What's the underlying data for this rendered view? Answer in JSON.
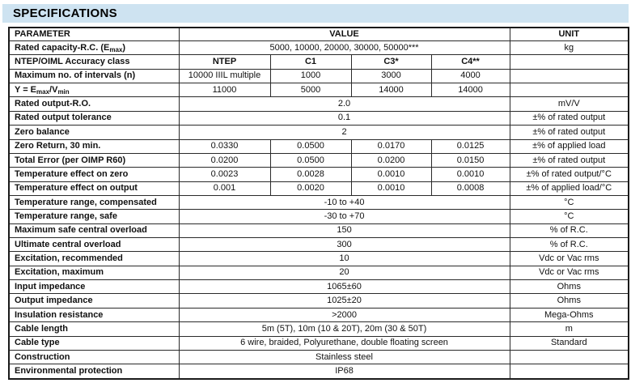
{
  "header": {
    "title": "SPECIFICATIONS",
    "background": "#cee3f1",
    "text_color": "#000000"
  },
  "table": {
    "border_color": "#1a1a1a",
    "columns": {
      "parameter": "PARAMETER",
      "value": "VALUE",
      "unit": "UNIT"
    },
    "rows": [
      {
        "param": "Rated capacity-R.C. (E_{max})",
        "span": "5000, 10000, 20000, 30000, 50000***",
        "unit": "kg"
      },
      {
        "param": "NTEP/OIML Accuracy class",
        "cols": [
          "NTEP",
          "C1",
          "C3*",
          "C4**"
        ],
        "bold": true,
        "unit": ""
      },
      {
        "param": "Maximum no. of intervals (n)",
        "cols": [
          "10000 IIIL multiple",
          "1000",
          "3000",
          "4000"
        ],
        "unit": ""
      },
      {
        "param": "Y = E_{max}/V_{min}",
        "cols": [
          "11000",
          "5000",
          "14000",
          "14000"
        ],
        "unit": ""
      },
      {
        "param": "Rated output-R.O.",
        "span": "2.0",
        "unit": "mV/V"
      },
      {
        "param": "Rated output tolerance",
        "span": "0.1",
        "unit": "±% of rated output"
      },
      {
        "param": "Zero balance",
        "span": "2",
        "unit": "±% of rated output"
      },
      {
        "param": "Zero Return, 30 min.",
        "cols": [
          "0.0330",
          "0.0500",
          "0.0170",
          "0.0125"
        ],
        "unit": "±% of applied load"
      },
      {
        "param": "Total Error (per OIMP R60)",
        "cols": [
          "0.0200",
          "0.0500",
          "0.0200",
          "0.0150"
        ],
        "unit": "±% of rated output"
      },
      {
        "param": "Temperature effect on zero",
        "cols": [
          "0.0023",
          "0.0028",
          "0.0010",
          "0.0010"
        ],
        "unit": "±% of rated output/°C"
      },
      {
        "param": "Temperature effect on output",
        "cols": [
          "0.001",
          "0.0020",
          "0.0010",
          "0.0008"
        ],
        "unit": "±% of applied load/°C"
      },
      {
        "param": "Temperature range, compensated",
        "span": "-10 to +40",
        "unit": "°C"
      },
      {
        "param": "Temperature range, safe",
        "span": "-30 to +70",
        "unit": "°C"
      },
      {
        "param": "Maximum safe central overload",
        "span": "150",
        "unit": "% of R.C."
      },
      {
        "param": "Ultimate central overload",
        "span": "300",
        "unit": "% of R.C."
      },
      {
        "param": "Excitation, recommended",
        "span": "10",
        "unit": "Vdc or Vac rms"
      },
      {
        "param": "Excitation, maximum",
        "span": "20",
        "unit": "Vdc or Vac rms"
      },
      {
        "param": "Input impedance",
        "span": "1065±60",
        "unit": "Ohms"
      },
      {
        "param": "Output impedance",
        "span": "1025±20",
        "unit": "Ohms"
      },
      {
        "param": "Insulation resistance",
        "span": ">2000",
        "unit": "Mega-Ohms"
      },
      {
        "param": "Cable length",
        "span": "5m (5T), 10m (10 & 20T), 20m (30 & 50T)",
        "unit": "m"
      },
      {
        "param": "Cable type",
        "span": "6 wire, braided, Polyurethane, double floating screen",
        "unit": "Standard"
      },
      {
        "param": "Construction",
        "span": "Stainless steel",
        "unit": ""
      },
      {
        "param": "Environmental protection",
        "span": "IP68",
        "unit": ""
      }
    ]
  }
}
